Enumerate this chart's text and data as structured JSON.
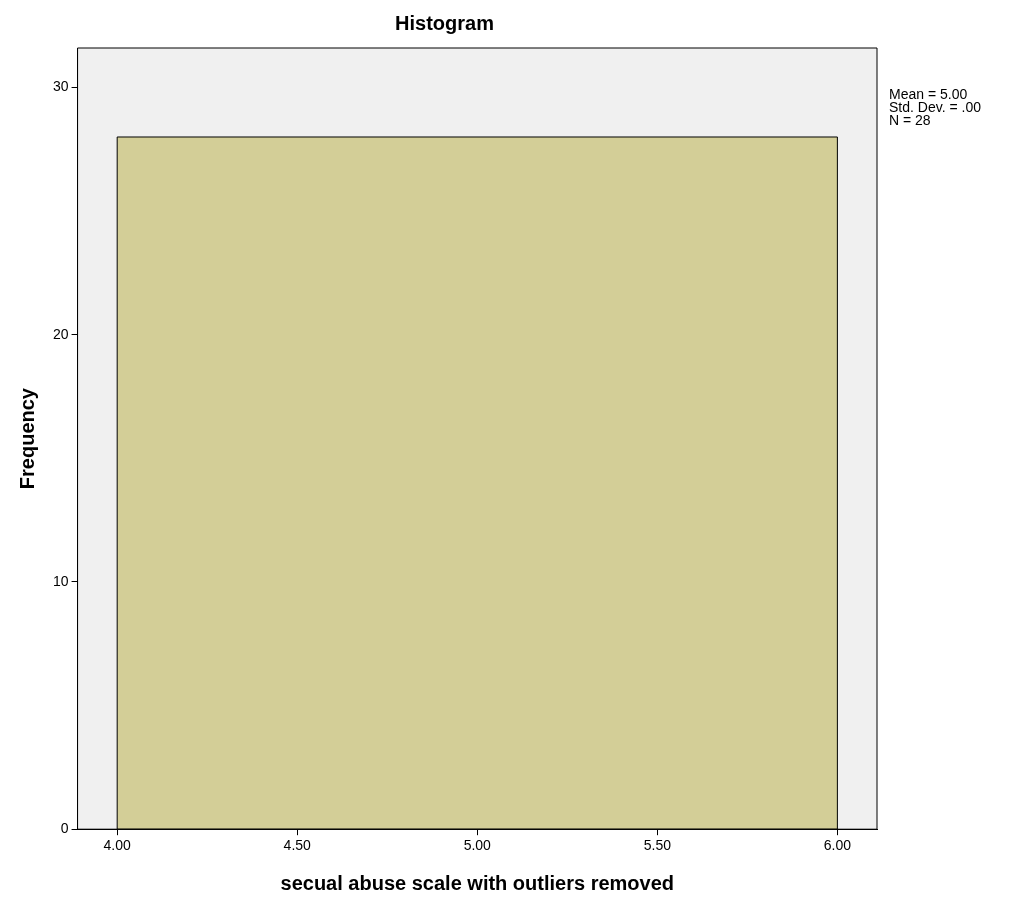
{
  "chart_data": {
    "type": "histogram",
    "title": "Histogram",
    "xlabel": "secual abuse scale with outliers removed",
    "ylabel": "Frequency",
    "bins": [
      4,
      6
    ],
    "values": [
      28
    ],
    "color": "#d3ce97",
    "xlim": [
      3.89,
      6.11
    ],
    "xticks": [
      {
        "value": 4,
        "label": "4.00"
      },
      {
        "value": 4.5,
        "label": "4.50"
      },
      {
        "value": 5,
        "label": "5.00"
      },
      {
        "value": 5.5,
        "label": "5.50"
      },
      {
        "value": 6,
        "label": "6.00"
      }
    ],
    "ylim": [
      0,
      31.6
    ],
    "yticks": [
      0,
      10,
      20,
      30
    ],
    "legend": false,
    "annotations": [
      "Mean = 5.00",
      "Std. Dev. = .00",
      "N = 28"
    ]
  }
}
